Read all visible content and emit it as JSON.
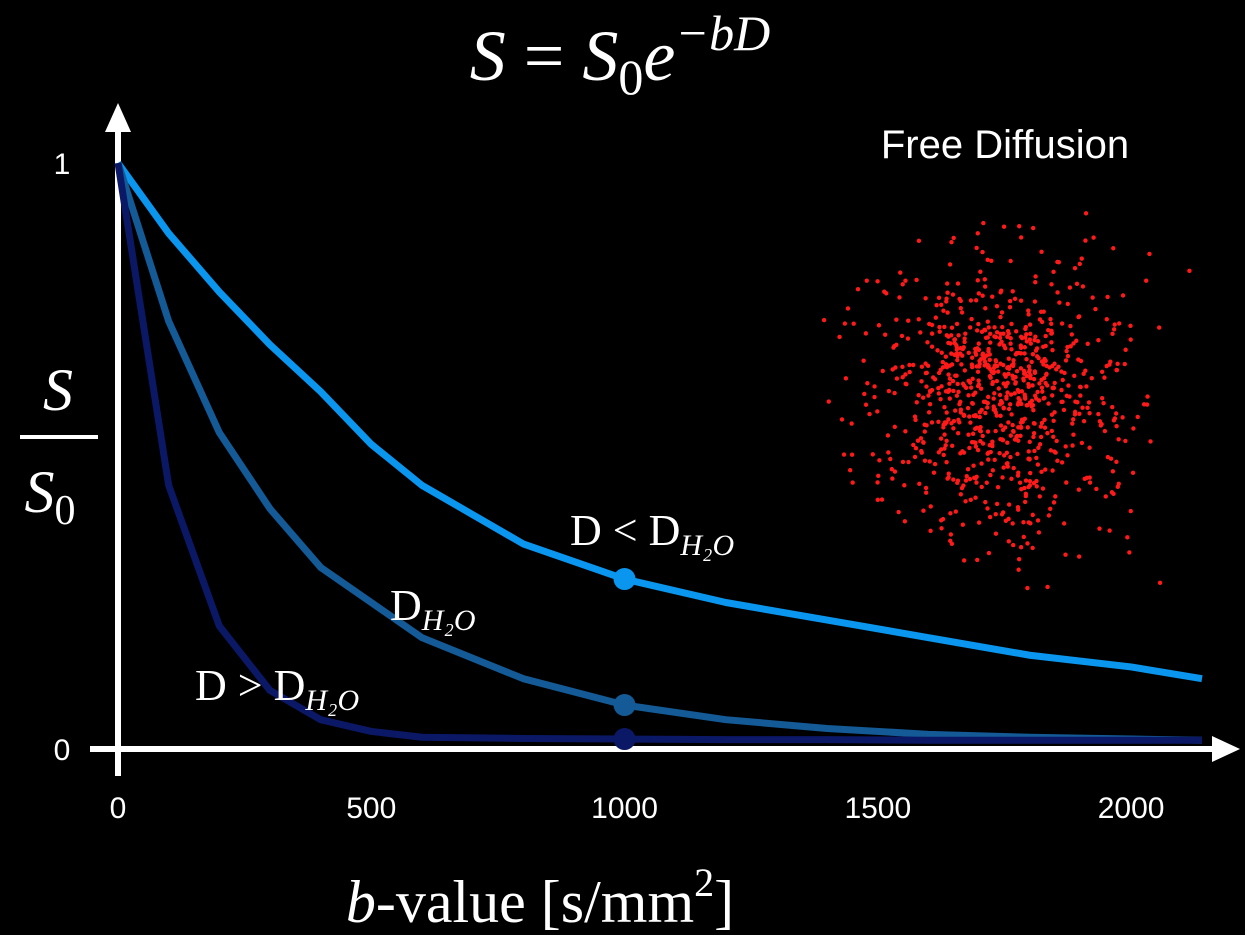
{
  "chart_data": {
    "type": "line",
    "title": {
      "lhs": "S",
      "eq": "=",
      "base": "S",
      "sub": "0",
      "exp_base": "e",
      "exp": "−bD"
    },
    "inset_label": "Free Diffusion",
    "y_label": {
      "num": "S",
      "den": "S",
      "den_sub": "0"
    },
    "x_label": {
      "var": "b",
      "rest": "-value [s/mm",
      "sup": "2",
      "close": "]"
    },
    "x": [
      0,
      100,
      200,
      300,
      400,
      500,
      600,
      800,
      1000,
      1200,
      1400,
      1600,
      1800,
      2000,
      2140
    ],
    "xlim": [
      0,
      2140
    ],
    "ylim": [
      0,
      1
    ],
    "xticks": [
      0,
      500,
      1000,
      1500,
      2000
    ],
    "yticks": [
      0,
      1
    ],
    "marker_x": 1000,
    "series": [
      {
        "name": "D < D",
        "sub": "H₂O",
        "color": "#0a96ee",
        "values": [
          1,
          0.88,
          0.78,
          0.69,
          0.61,
          0.52,
          0.45,
          0.35,
          0.29,
          0.25,
          0.22,
          0.19,
          0.16,
          0.14,
          0.12
        ]
      },
      {
        "name": "D",
        "sub": "H₂O",
        "color": "#135a96",
        "values": [
          1,
          0.73,
          0.54,
          0.41,
          0.31,
          0.25,
          0.19,
          0.12,
          0.075,
          0.05,
          0.035,
          0.025,
          0.02,
          0.017,
          0.015
        ]
      },
      {
        "name": "D > D",
        "sub": "H₂O",
        "color": "#0b1866",
        "values": [
          1,
          0.45,
          0.21,
          0.1,
          0.05,
          0.03,
          0.02,
          0.018,
          0.017,
          0.016,
          0.016,
          0.015,
          0.015,
          0.015,
          0.015
        ]
      }
    ]
  }
}
